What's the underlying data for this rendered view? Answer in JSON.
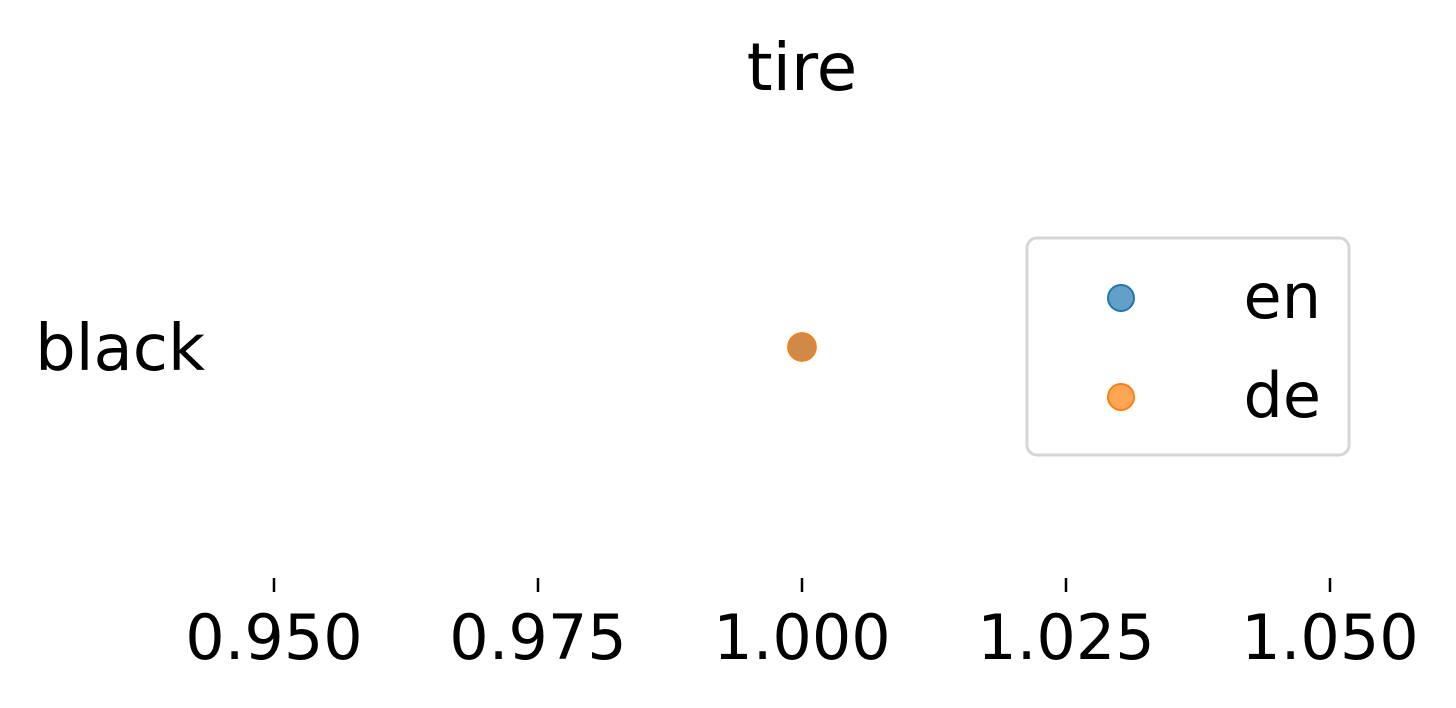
{
  "chart_data": {
    "type": "scatter",
    "title": "tire",
    "xlabel": "",
    "ylabel": "",
    "categories": [
      "black"
    ],
    "xlim": [
      0.94,
      1.06
    ],
    "x_ticks": [
      0.95,
      0.975,
      1.0,
      1.025,
      1.05
    ],
    "x_tick_labels": [
      "0.950",
      "0.975",
      "1.000",
      "1.025",
      "1.050"
    ],
    "grid": false,
    "legend_position": "right",
    "series": [
      {
        "name": "en",
        "color": "#1f77b4",
        "points": [
          {
            "category": "black",
            "x": 1.0
          }
        ]
      },
      {
        "name": "de",
        "color": "#ff7f0e",
        "points": [
          {
            "category": "black",
            "x": 1.0
          }
        ]
      }
    ]
  }
}
